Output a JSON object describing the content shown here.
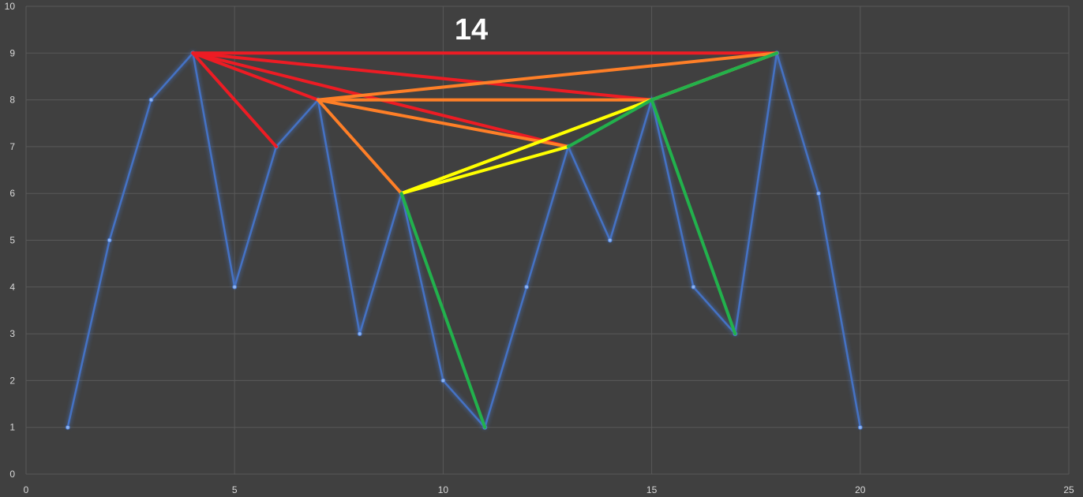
{
  "chart_data": {
    "type": "line",
    "title": "14",
    "xlabel": "",
    "ylabel": "",
    "xlim": [
      0,
      25
    ],
    "ylim": [
      0,
      10
    ],
    "x_ticks": [
      "0",
      "5",
      "10",
      "15",
      "20",
      "25"
    ],
    "y_ticks": [
      "0",
      "1",
      "2",
      "3",
      "4",
      "5",
      "6",
      "7",
      "8",
      "9",
      "10"
    ],
    "grid": true,
    "legend": "none",
    "series": [
      {
        "color": "#4472c4",
        "x": [
          1,
          2,
          3,
          4,
          5,
          6,
          7,
          8,
          9,
          10,
          11,
          12,
          13,
          14,
          15,
          16,
          17,
          18,
          19,
          20
        ],
        "values": [
          1,
          5,
          8,
          9,
          4,
          7,
          8,
          3,
          6,
          2,
          1,
          4,
          7,
          5,
          8,
          4,
          3,
          9,
          6,
          1
        ]
      }
    ],
    "connections": {
      "red": {
        "color": "#ed1c24",
        "segments": [
          [
            [
              4,
              9
            ],
            [
              6,
              7
            ]
          ],
          [
            [
              4,
              9
            ],
            [
              7,
              8
            ]
          ],
          [
            [
              4,
              9
            ],
            [
              13,
              7
            ]
          ],
          [
            [
              4,
              9
            ],
            [
              15,
              8
            ]
          ],
          [
            [
              4,
              9
            ],
            [
              18,
              9
            ]
          ]
        ]
      },
      "orange": {
        "color": "#ff7f27",
        "segments": [
          [
            [
              7,
              8
            ],
            [
              9,
              6
            ]
          ],
          [
            [
              7,
              8
            ],
            [
              13,
              7
            ]
          ],
          [
            [
              7,
              8
            ],
            [
              15,
              8
            ]
          ],
          [
            [
              7,
              8
            ],
            [
              18,
              9
            ]
          ]
        ]
      },
      "yellow": {
        "color": "#ffff00",
        "segments": [
          [
            [
              9,
              6
            ],
            [
              13,
              7
            ]
          ],
          [
            [
              9,
              6
            ],
            [
              15,
              8
            ]
          ],
          [
            [
              9,
              6
            ],
            [
              18,
              9
            ]
          ]
        ]
      },
      "green": {
        "color": "#22b14c",
        "segments": [
          [
            [
              9,
              6
            ],
            [
              11,
              1
            ]
          ],
          [
            [
              13,
              7
            ],
            [
              15,
              8
            ]
          ],
          [
            [
              15,
              8
            ],
            [
              17,
              3
            ]
          ],
          [
            [
              15,
              8
            ],
            [
              18,
              9
            ]
          ]
        ]
      }
    },
    "colors": {
      "background": "#404040",
      "gridline": "#595959",
      "tick_text": "#d9d9d9",
      "title_text": "#ffffff"
    }
  }
}
